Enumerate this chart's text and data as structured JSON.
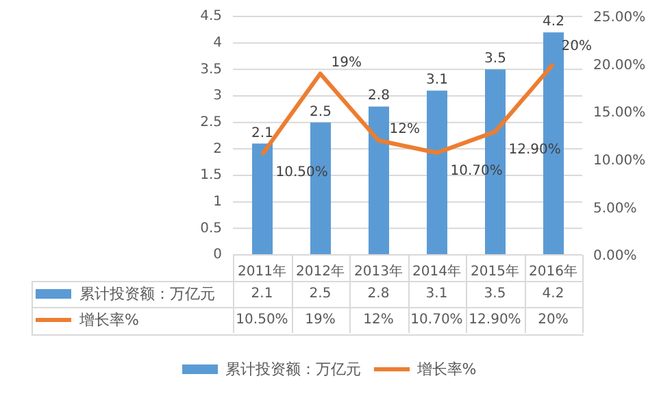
{
  "chart_data": {
    "type": "bar",
    "categories": [
      "2011年",
      "2012年",
      "2013年",
      "2014年",
      "2015年",
      "2016年"
    ],
    "series": [
      {
        "name": "累计投资额：万亿元",
        "color": "#5b9bd5",
        "values": [
          2.1,
          2.5,
          2.8,
          3.1,
          3.5,
          4.2
        ],
        "value_labels": [
          "2.1",
          "2.5",
          "2.8",
          "3.1",
          "3.5",
          "4.2"
        ]
      },
      {
        "name": "增长率%",
        "type": "line",
        "axis": "y2",
        "color": "#ed7d31",
        "values": [
          10.5,
          19,
          12,
          10.7,
          12.9,
          20
        ],
        "value_labels": [
          "10.50%",
          "19%",
          "12%",
          "10.70%",
          "12.90%",
          "20%"
        ]
      }
    ],
    "ylim": [
      0,
      4.5
    ],
    "yticks": [
      0,
      0.5,
      1,
      1.5,
      2,
      2.5,
      3,
      3.5,
      4,
      4.5
    ],
    "y2lim": [
      0,
      25
    ],
    "y2ticks": [
      {
        "value": 0,
        "label": "0.00%"
      },
      {
        "value": 5,
        "label": "5.00%"
      },
      {
        "value": 10,
        "label": "10.00%"
      },
      {
        "value": 15,
        "label": "15.00%"
      },
      {
        "value": 20,
        "label": "20.00%"
      },
      {
        "value": 25,
        "label": "25.00%"
      }
    ],
    "grid": "y",
    "legend": "bottom",
    "marker": "none",
    "line_style": "solid"
  }
}
